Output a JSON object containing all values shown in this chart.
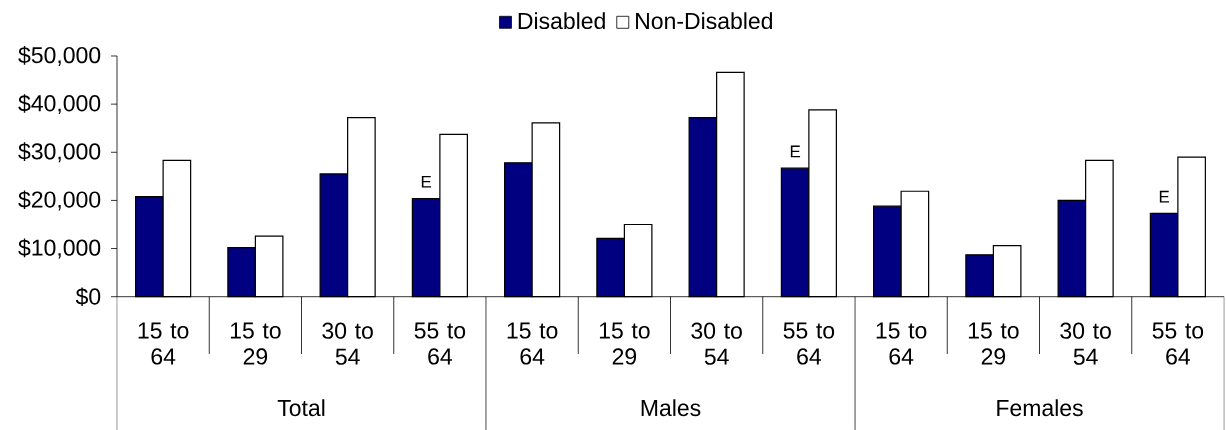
{
  "chart_data": {
    "type": "bar",
    "categories": [
      "15 to 64",
      "15 to 29",
      "30 to 54",
      "55 to 64",
      "15 to 64",
      "15 to 29",
      "30 to 54",
      "55 to 64",
      "15 to 64",
      "15 to 29",
      "30 to 54",
      "55 to 64"
    ],
    "series": [
      {
        "name": "Disabled",
        "color": "#000080",
        "values": [
          20800,
          10200,
          25500,
          20400,
          27800,
          12100,
          37200,
          26700,
          18800,
          8700,
          20000,
          17300
        ],
        "value_labels": [
          null,
          null,
          null,
          "E",
          null,
          null,
          null,
          "E",
          null,
          null,
          null,
          "E"
        ]
      },
      {
        "name": "Non-Disabled",
        "color": "#ffffff",
        "values": [
          28300,
          12600,
          37200,
          33700,
          36100,
          15000,
          46600,
          38800,
          21900,
          10600,
          28300,
          29000
        ]
      }
    ],
    "annotations": [
      "Total",
      "Males",
      "Females"
    ],
    "ylim": [
      0,
      50000
    ],
    "yticks": [
      {
        "value": 0,
        "label": "$0"
      },
      {
        "value": 10000,
        "label": "$10,000"
      },
      {
        "value": 20000,
        "label": "$20,000"
      },
      {
        "value": 30000,
        "label": "$30,000"
      },
      {
        "value": 40000,
        "label": "$40,000"
      },
      {
        "value": 50000,
        "label": "$50,000"
      }
    ],
    "grid": false,
    "legend": "top"
  }
}
